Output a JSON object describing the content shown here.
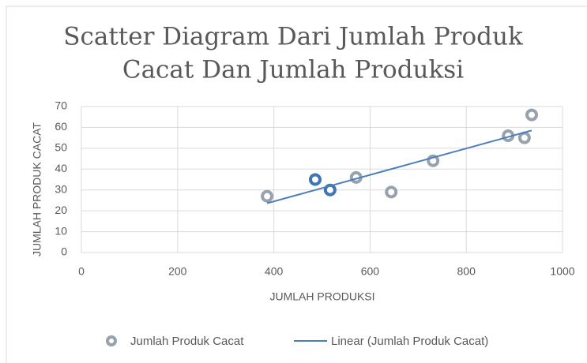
{
  "chart_data": {
    "type": "scatter",
    "title": [
      "Scatter  Diagram Dari  Jumlah Produk",
      "Cacat Dan Jumlah  Produksi"
    ],
    "x_label": "JUMLAH PRODUKSI",
    "y_label": "JUMLAH PRODUK CACAT",
    "series": [
      {
        "name": "Jumlah Produk Cacat",
        "color": "#98a2ad",
        "point_colors": [
          "#98a2ad",
          "#3f74b5",
          "#3f74b5",
          "#98a2ad",
          "#98a2ad",
          "#98a2ad",
          "#98a2ad",
          "#98a2ad",
          "#98a2ad"
        ],
        "x": [
          386,
          486,
          517,
          571,
          644,
          731,
          887,
          921,
          936
        ],
        "values": [
          27,
          35,
          30,
          36,
          29,
          44,
          56,
          55,
          66
        ]
      }
    ],
    "trendline": {
      "name": "Linear (Jumlah Produk Cacat)",
      "color": "#4a7ebb"
    },
    "xlim": [
      0,
      1000
    ],
    "xticks": [
      0,
      200,
      400,
      600,
      800,
      1000
    ],
    "ylim": [
      0,
      70
    ],
    "yticks": [
      0,
      10,
      20,
      30,
      40,
      50,
      60,
      70
    ],
    "grid": true,
    "legend": "bottom"
  }
}
